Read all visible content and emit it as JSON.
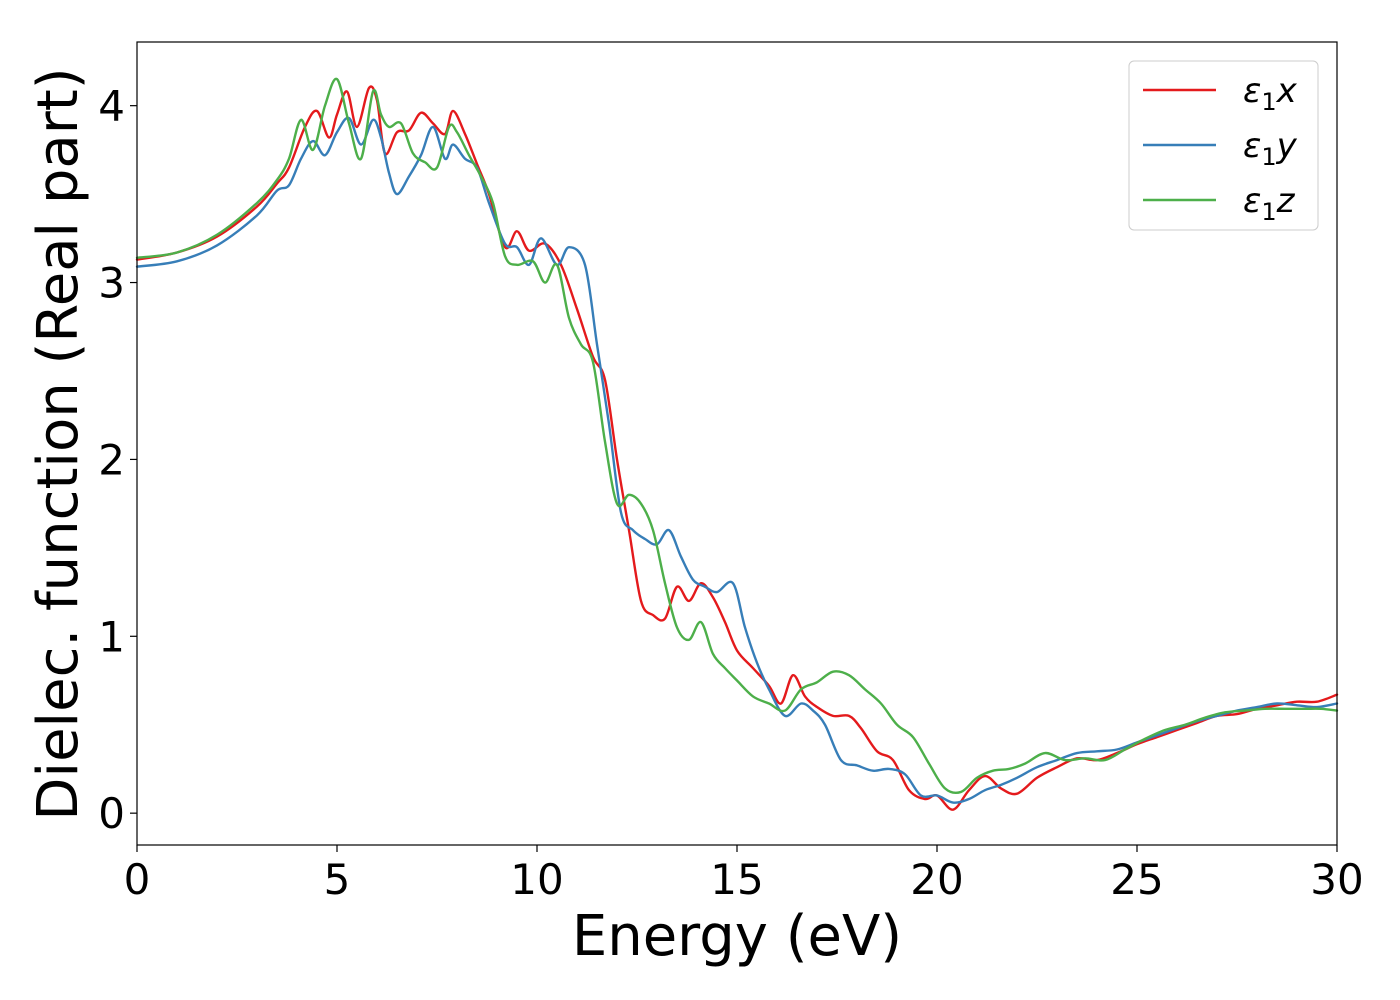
{
  "chart_data": {
    "type": "line",
    "title": "",
    "xlabel": "Energy (eV)",
    "ylabel": "Dielec. function (Real part)",
    "xlim": [
      0,
      30
    ],
    "ylim": [
      -0.18,
      4.36
    ],
    "xticks": [
      0,
      5,
      10,
      15,
      20,
      25,
      30
    ],
    "yticks": [
      0,
      1,
      2,
      3,
      4
    ],
    "grid": false,
    "legend_position": "top-right",
    "series": [
      {
        "name": "ε1x",
        "legend_base": "ε",
        "legend_sub": "1",
        "legend_var": "x",
        "color": "#e41a1c",
        "x": [
          0,
          1,
          2,
          3,
          3.5,
          3.8,
          4.2,
          4.5,
          4.8,
          5.0,
          5.25,
          5.5,
          5.8,
          6.0,
          6.2,
          6.5,
          6.8,
          7.1,
          7.4,
          7.7,
          7.9,
          8.2,
          8.5,
          8.8,
          9.2,
          9.5,
          9.8,
          10.2,
          10.6,
          11.0,
          11.4,
          11.7,
          12.0,
          12.3,
          12.6,
          12.9,
          13.2,
          13.5,
          13.8,
          14.1,
          14.4,
          14.7,
          15.0,
          15.4,
          15.8,
          16.1,
          16.4,
          16.7,
          17.0,
          17.4,
          17.8,
          18.1,
          18.5,
          18.9,
          19.3,
          19.7,
          20.0,
          20.4,
          20.8,
          21.2,
          21.6,
          22.0,
          22.5,
          23.0,
          23.5,
          24.0,
          24.5,
          25.0,
          25.5,
          26.0,
          26.5,
          27.0,
          27.5,
          28.0,
          28.5,
          29.0,
          29.5,
          30.0
        ],
        "y": [
          3.13,
          3.17,
          3.26,
          3.43,
          3.56,
          3.65,
          3.88,
          3.97,
          3.82,
          3.95,
          4.08,
          3.88,
          4.1,
          4.03,
          3.73,
          3.85,
          3.86,
          3.96,
          3.9,
          3.84,
          3.97,
          3.84,
          3.67,
          3.5,
          3.2,
          3.29,
          3.18,
          3.22,
          3.1,
          2.85,
          2.58,
          2.45,
          2.0,
          1.6,
          1.2,
          1.12,
          1.1,
          1.28,
          1.2,
          1.3,
          1.22,
          1.08,
          0.92,
          0.82,
          0.72,
          0.62,
          0.78,
          0.66,
          0.6,
          0.55,
          0.55,
          0.48,
          0.35,
          0.3,
          0.13,
          0.08,
          0.1,
          0.02,
          0.13,
          0.21,
          0.14,
          0.11,
          0.2,
          0.26,
          0.31,
          0.3,
          0.34,
          0.39,
          0.43,
          0.47,
          0.51,
          0.55,
          0.56,
          0.59,
          0.61,
          0.63,
          0.63,
          0.67
        ]
      },
      {
        "name": "ε1y",
        "legend_base": "ε",
        "legend_sub": "1",
        "legend_var": "y",
        "color": "#377eb8",
        "x": [
          0,
          1,
          2,
          3,
          3.5,
          3.8,
          4.1,
          4.4,
          4.7,
          5.0,
          5.3,
          5.6,
          5.9,
          6.1,
          6.3,
          6.5,
          6.8,
          7.1,
          7.4,
          7.7,
          7.9,
          8.2,
          8.5,
          8.8,
          9.2,
          9.5,
          9.8,
          10.1,
          10.5,
          10.8,
          11.2,
          11.5,
          11.8,
          12.1,
          12.4,
          12.7,
          13.0,
          13.3,
          13.6,
          13.9,
          14.2,
          14.5,
          14.9,
          15.2,
          15.5,
          15.8,
          16.2,
          16.6,
          16.9,
          17.2,
          17.6,
          18.0,
          18.4,
          18.8,
          19.2,
          19.6,
          20.0,
          20.4,
          20.8,
          21.2,
          21.6,
          22.0,
          22.5,
          23.0,
          23.5,
          24.0,
          24.5,
          25.0,
          25.5,
          26.0,
          26.5,
          27.0,
          27.5,
          28.0,
          28.5,
          29.0,
          29.5,
          30.0
        ],
        "y": [
          3.09,
          3.12,
          3.21,
          3.38,
          3.52,
          3.55,
          3.7,
          3.8,
          3.72,
          3.85,
          3.93,
          3.78,
          3.92,
          3.82,
          3.62,
          3.5,
          3.6,
          3.72,
          3.88,
          3.7,
          3.78,
          3.7,
          3.65,
          3.45,
          3.22,
          3.2,
          3.1,
          3.25,
          3.1,
          3.2,
          3.1,
          2.65,
          2.2,
          1.7,
          1.6,
          1.55,
          1.52,
          1.6,
          1.45,
          1.32,
          1.28,
          1.25,
          1.3,
          1.05,
          0.85,
          0.7,
          0.55,
          0.62,
          0.58,
          0.5,
          0.3,
          0.27,
          0.24,
          0.25,
          0.22,
          0.1,
          0.1,
          0.06,
          0.08,
          0.13,
          0.16,
          0.2,
          0.26,
          0.3,
          0.34,
          0.35,
          0.36,
          0.4,
          0.44,
          0.48,
          0.52,
          0.55,
          0.58,
          0.6,
          0.62,
          0.61,
          0.6,
          0.62
        ]
      },
      {
        "name": "ε1z",
        "legend_base": "ε",
        "legend_sub": "1",
        "legend_var": "z",
        "color": "#4daf4a",
        "x": [
          0,
          1,
          2,
          3,
          3.5,
          3.8,
          4.1,
          4.4,
          4.7,
          5.0,
          5.3,
          5.6,
          5.9,
          6.1,
          6.3,
          6.6,
          6.9,
          7.2,
          7.5,
          7.8,
          8.0,
          8.3,
          8.6,
          8.9,
          9.2,
          9.5,
          9.9,
          10.2,
          10.5,
          10.8,
          11.1,
          11.4,
          11.7,
          12.0,
          12.3,
          12.6,
          12.9,
          13.2,
          13.5,
          13.8,
          14.1,
          14.4,
          14.7,
          15.0,
          15.4,
          15.8,
          16.2,
          16.6,
          17.0,
          17.4,
          17.8,
          18.2,
          18.6,
          19.0,
          19.4,
          19.8,
          20.2,
          20.6,
          21.0,
          21.4,
          21.8,
          22.2,
          22.7,
          23.2,
          23.7,
          24.2,
          24.7,
          25.2,
          25.7,
          26.2,
          26.7,
          27.2,
          27.7,
          28.2,
          28.7,
          29.2,
          29.6,
          30.0
        ],
        "y": [
          3.14,
          3.17,
          3.27,
          3.45,
          3.58,
          3.7,
          3.92,
          3.75,
          4.0,
          4.15,
          3.9,
          3.7,
          4.08,
          3.95,
          3.88,
          3.9,
          3.73,
          3.68,
          3.65,
          3.88,
          3.85,
          3.72,
          3.6,
          3.45,
          3.15,
          3.1,
          3.12,
          3.0,
          3.1,
          2.8,
          2.65,
          2.55,
          2.1,
          1.75,
          1.8,
          1.75,
          1.6,
          1.3,
          1.05,
          0.98,
          1.08,
          0.9,
          0.82,
          0.75,
          0.66,
          0.62,
          0.58,
          0.7,
          0.74,
          0.8,
          0.78,
          0.7,
          0.62,
          0.5,
          0.43,
          0.28,
          0.14,
          0.12,
          0.2,
          0.24,
          0.25,
          0.28,
          0.34,
          0.3,
          0.31,
          0.3,
          0.36,
          0.42,
          0.47,
          0.5,
          0.54,
          0.57,
          0.58,
          0.59,
          0.59,
          0.59,
          0.59,
          0.58
        ]
      }
    ]
  }
}
